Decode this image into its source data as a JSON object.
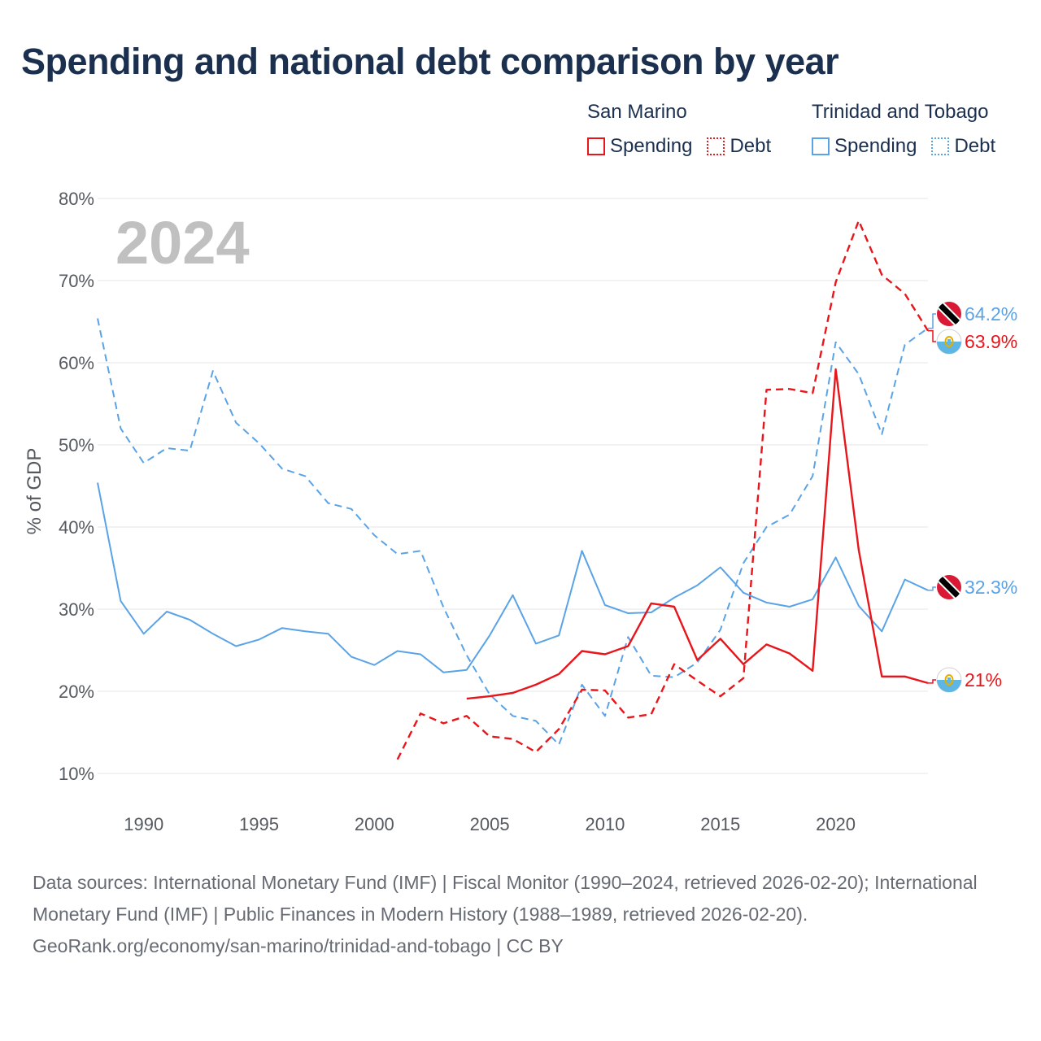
{
  "title": "Spending and national debt comparison by year",
  "year_watermark": "2024",
  "legend": {
    "groups": [
      {
        "name": "San Marino",
        "color": "#e8151b",
        "spending_label": "Spending",
        "debt_label": "Debt"
      },
      {
        "name": "Trinidad and Tobago",
        "color": "#5aa3e6",
        "spending_label": "Spending",
        "debt_label": "Debt"
      }
    ]
  },
  "footer": {
    "sources": "Data sources: International Monetary Fund (IMF) | Fiscal Monitor (1990–2024, retrieved 2026-02-20); International Monetary Fund (IMF) | Public Finances in Modern History (1988–1989, retrieved 2026-02-20).",
    "attribution": "GeoRank.org/economy/san-marino/trinidad-and-tobago | CC BY"
  },
  "chart_data": {
    "type": "line",
    "title": "Spending and national debt comparison by year",
    "ylabel": "% of GDP",
    "xlabel": "",
    "xlim": [
      1988,
      2024
    ],
    "ylim": [
      10,
      80
    ],
    "y_ticks": [
      10,
      20,
      30,
      40,
      50,
      60,
      70,
      80
    ],
    "y_tick_labels": [
      "10%",
      "20%",
      "30%",
      "40%",
      "50%",
      "60%",
      "70%",
      "80%"
    ],
    "x_ticks": [
      1990,
      1995,
      2000,
      2005,
      2010,
      2015,
      2020
    ],
    "x_tick_labels": [
      "1990",
      "1995",
      "2000",
      "2005",
      "2010",
      "2015",
      "2020"
    ],
    "grid": true,
    "legend_position": "top-right",
    "series": [
      {
        "name": "Trinidad and Tobago Debt",
        "country": "Trinidad and Tobago",
        "measure": "Debt",
        "color": "#5aa3e6",
        "dash": true,
        "x": [
          1988,
          1989,
          1990,
          1991,
          1992,
          1993,
          1994,
          1995,
          1996,
          1997,
          1998,
          1999,
          2000,
          2001,
          2002,
          2003,
          2004,
          2005,
          2006,
          2007,
          2008,
          2009,
          2010,
          2011,
          2012,
          2013,
          2014,
          2015,
          2016,
          2017,
          2018,
          2019,
          2020,
          2021,
          2022,
          2023,
          2024
        ],
        "values": [
          65.4,
          52.0,
          47.8,
          49.6,
          49.3,
          59.0,
          52.7,
          50.2,
          47.1,
          46.2,
          42.9,
          42.2,
          39.0,
          36.7,
          37.1,
          30.2,
          24.4,
          19.6,
          17.0,
          16.4,
          13.5,
          20.8,
          17.0,
          26.6,
          21.9,
          21.7,
          23.5,
          27.5,
          35.6,
          40.0,
          41.5,
          46.2,
          62.5,
          58.6,
          51.3,
          62.2,
          64.2
        ],
        "end_label": "64.2%"
      },
      {
        "name": "San Marino Debt",
        "country": "San Marino",
        "measure": "Debt",
        "color": "#e8151b",
        "dash": true,
        "x": [
          2001,
          2002,
          2003,
          2004,
          2005,
          2006,
          2007,
          2008,
          2009,
          2010,
          2011,
          2012,
          2013,
          2014,
          2015,
          2016,
          2017,
          2018,
          2019,
          2020,
          2021,
          2022,
          2023,
          2024
        ],
        "values": [
          11.7,
          17.3,
          16.1,
          17.0,
          14.5,
          14.2,
          12.6,
          15.4,
          20.2,
          20.1,
          16.8,
          17.2,
          23.3,
          21.3,
          19.4,
          21.6,
          56.7,
          56.8,
          56.3,
          69.8,
          77.3,
          70.7,
          68.4,
          63.9
        ],
        "end_label": "63.9%"
      },
      {
        "name": "Trinidad and Tobago Spending",
        "country": "Trinidad and Tobago",
        "measure": "Spending",
        "color": "#5aa3e6",
        "dash": false,
        "x": [
          1988,
          1989,
          1990,
          1991,
          1992,
          1993,
          1994,
          1995,
          1996,
          1997,
          1998,
          1999,
          2000,
          2001,
          2002,
          2003,
          2004,
          2005,
          2006,
          2007,
          2008,
          2009,
          2010,
          2011,
          2012,
          2013,
          2014,
          2015,
          2016,
          2017,
          2018,
          2019,
          2020,
          2021,
          2022,
          2023,
          2024
        ],
        "values": [
          45.4,
          31.0,
          27.0,
          29.7,
          28.7,
          27.0,
          25.5,
          26.3,
          27.7,
          27.3,
          27.0,
          24.2,
          23.2,
          24.9,
          24.5,
          22.3,
          22.6,
          26.8,
          31.7,
          25.8,
          26.8,
          37.1,
          30.5,
          29.5,
          29.6,
          31.4,
          32.9,
          35.1,
          32.0,
          30.8,
          30.3,
          31.2,
          36.3,
          30.4,
          27.3,
          33.6,
          32.3
        ],
        "end_label": "32.3%"
      },
      {
        "name": "San Marino Spending",
        "country": "San Marino",
        "measure": "Spending",
        "color": "#e8151b",
        "dash": false,
        "x": [
          2004,
          2005,
          2006,
          2007,
          2008,
          2009,
          2010,
          2011,
          2012,
          2013,
          2014,
          2015,
          2016,
          2017,
          2018,
          2019,
          2020,
          2021,
          2022,
          2023,
          2024
        ],
        "values": [
          19.1,
          19.4,
          19.8,
          20.8,
          22.1,
          24.9,
          24.5,
          25.5,
          30.7,
          30.3,
          23.8,
          26.4,
          23.3,
          25.7,
          24.6,
          22.5,
          59.2,
          37.2,
          21.8,
          21.8,
          21.0
        ],
        "end_label": "21%"
      }
    ]
  }
}
